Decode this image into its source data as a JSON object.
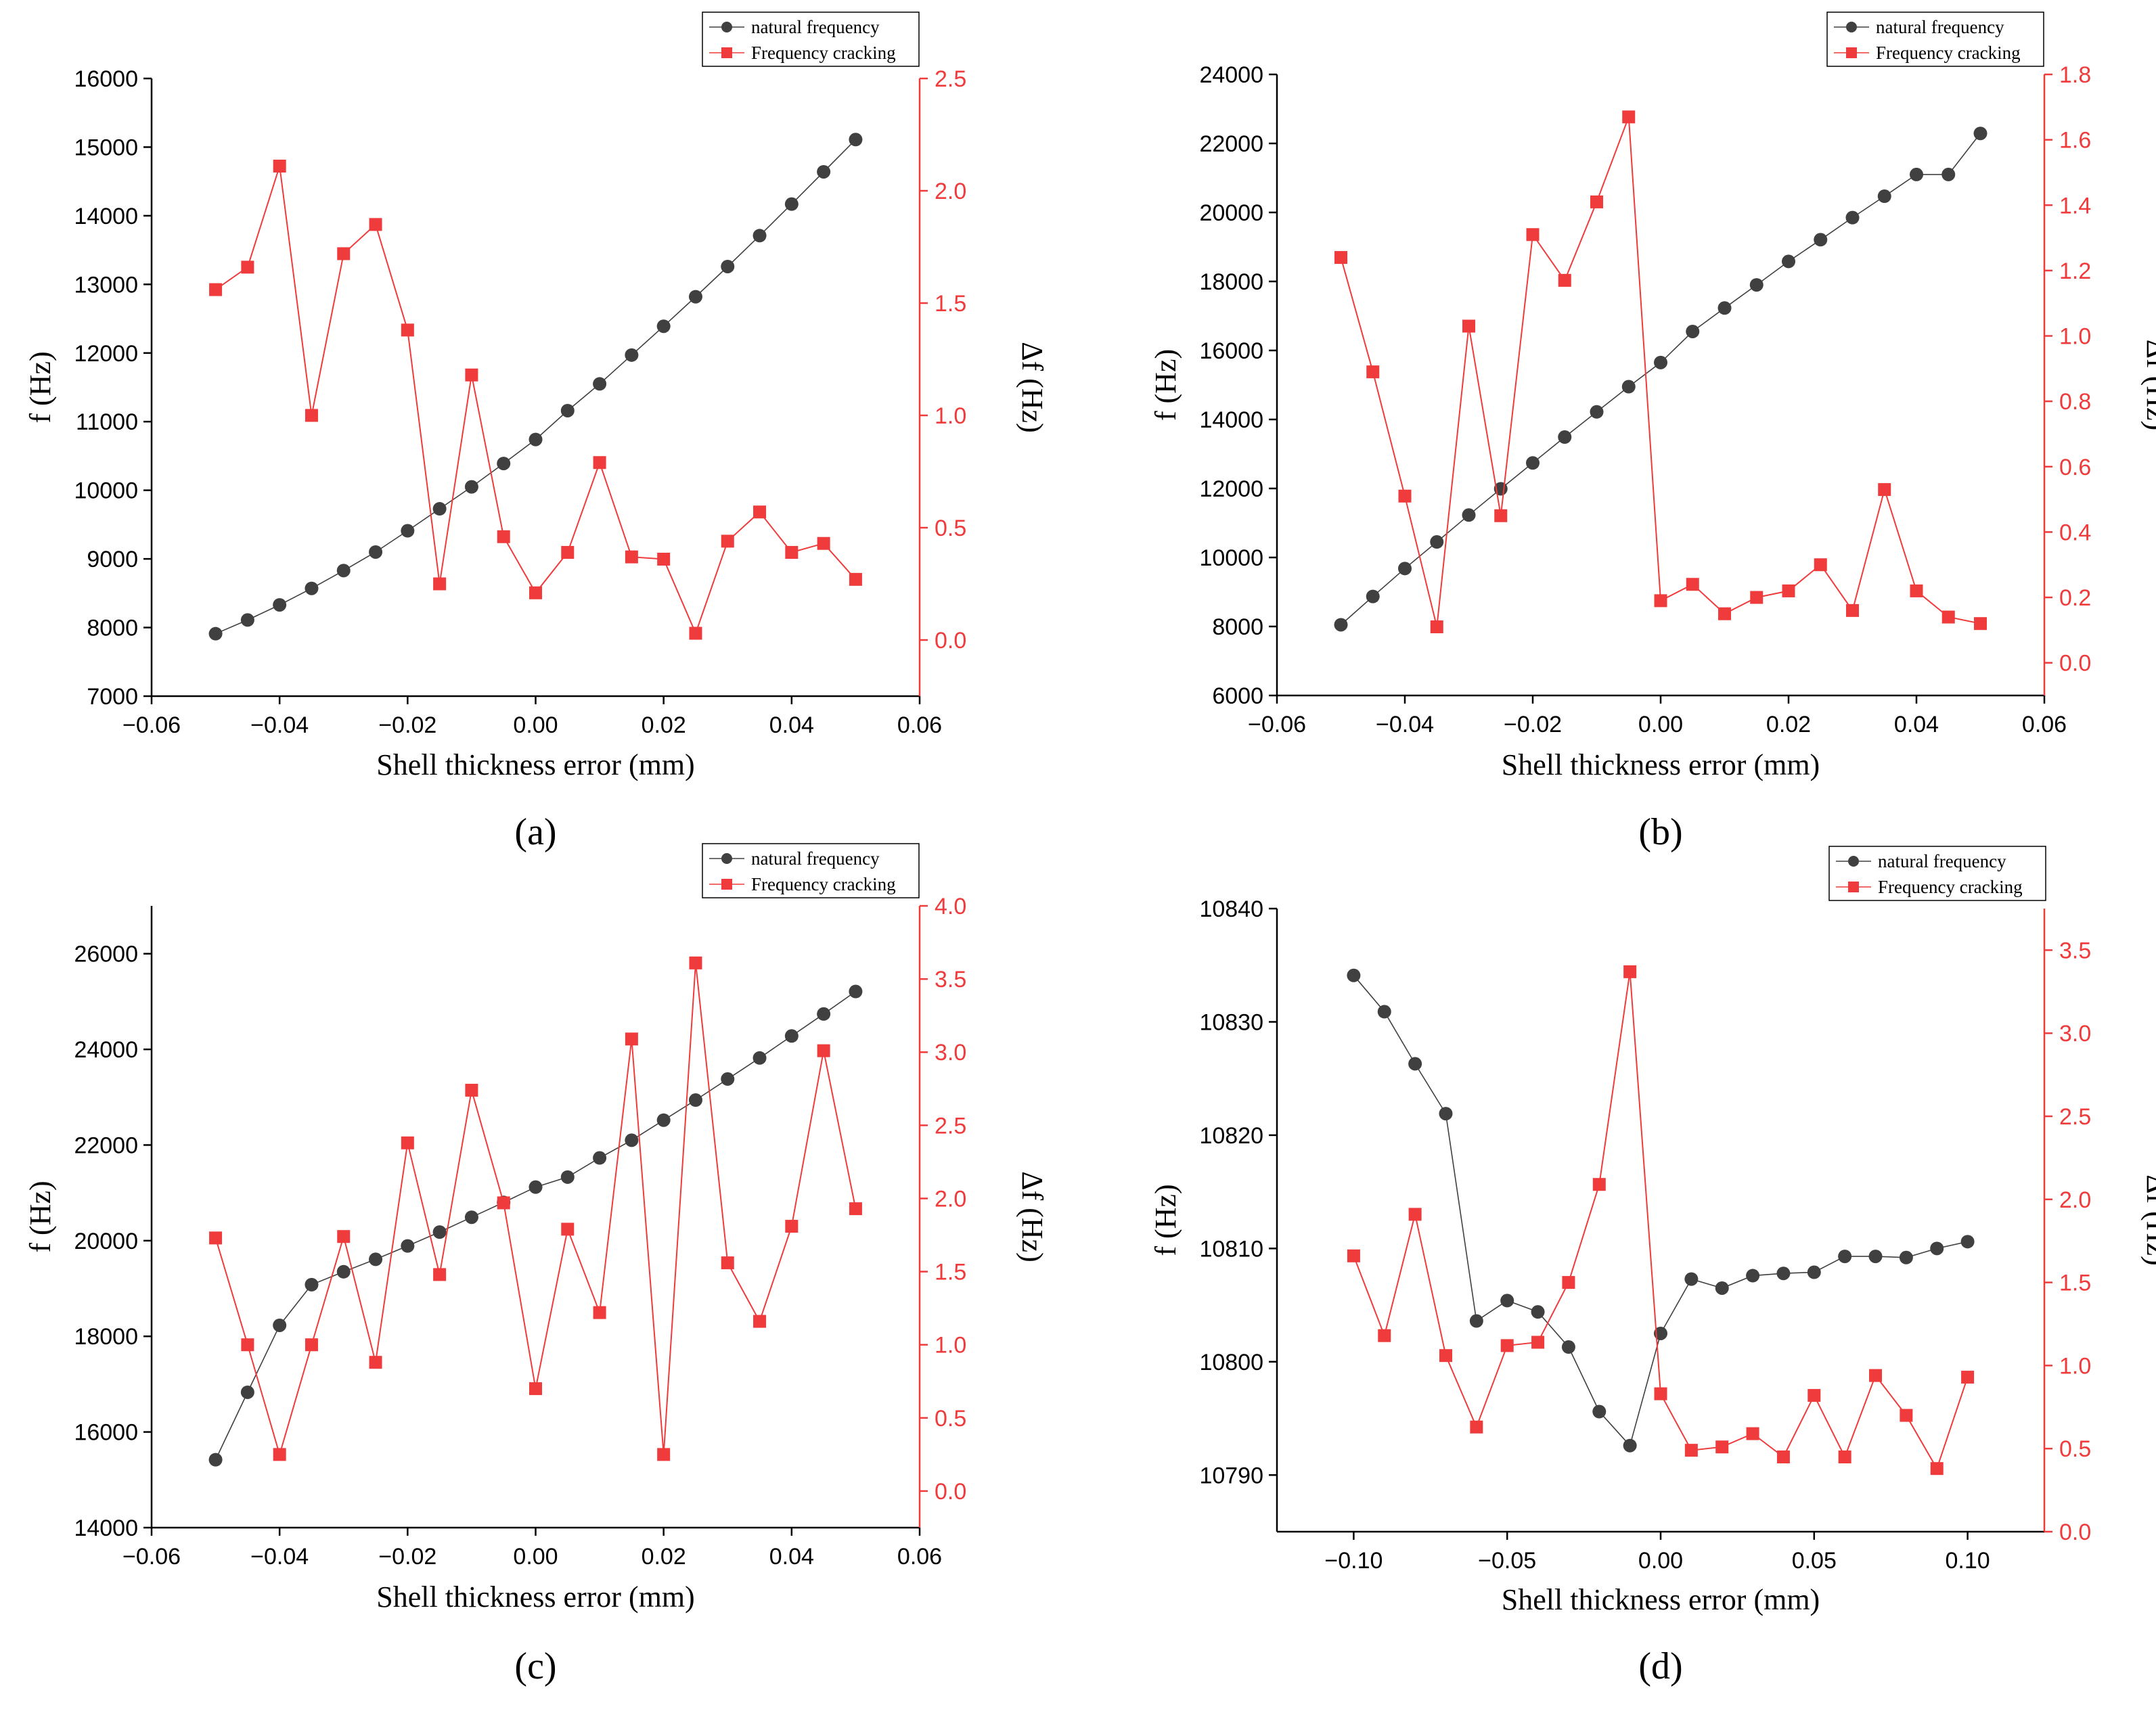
{
  "chart_data": [
    {
      "panel_label": "(a)",
      "type": "line",
      "xlabel": "Shell thickness error (mm)",
      "ylabel_left": "f (Hz)",
      "ylabel_right": "Δf (Hz)",
      "xlim": [
        -0.06,
        0.06
      ],
      "xticks": [
        -0.06,
        -0.04,
        -0.02,
        0.0,
        0.02,
        0.04,
        0.06
      ],
      "xtick_labels": [
        "−0.06",
        "−0.04",
        "−0.02",
        "0.00",
        "0.02",
        "0.04",
        "0.06"
      ],
      "ylim_left": [
        7000,
        16000
      ],
      "yticks_left": [
        7000,
        8000,
        9000,
        10000,
        11000,
        12000,
        13000,
        14000,
        15000,
        16000
      ],
      "ytick_labels_left": [
        "7000",
        "8000",
        "9000",
        "10000",
        "11000",
        "12000",
        "13000",
        "14000",
        "15000",
        "16000"
      ],
      "ylim_right": [
        -0.25,
        2.5
      ],
      "yticks_right": [
        0.0,
        0.5,
        1.0,
        1.5,
        2.0,
        2.5
      ],
      "ytick_labels_right": [
        "0.0",
        "0.5",
        "1.0",
        "1.5",
        "2.0",
        "2.5"
      ],
      "legend": [
        "natural frequency",
        "Frequency cracking"
      ],
      "legend_position": "top-right",
      "x": [
        -0.05,
        -0.045,
        -0.04,
        -0.035,
        -0.03,
        -0.025,
        -0.02,
        -0.015,
        -0.01,
        -0.005,
        0.0,
        0.005,
        0.01,
        0.015,
        0.02,
        0.025,
        0.03,
        0.035,
        0.04,
        0.045,
        0.05
      ],
      "series": [
        {
          "name": "natural frequency",
          "axis": "left",
          "color": "#404040",
          "marker": "circle",
          "values": [
            7910,
            8110,
            8330,
            8570,
            8830,
            9100,
            9410,
            9730,
            10050,
            10390,
            10740,
            11160,
            11550,
            11970,
            12390,
            12820,
            13260,
            13710,
            14170,
            14640,
            15110
          ]
        },
        {
          "name": "Frequency cracking",
          "axis": "right",
          "color": "#ef3b3b",
          "marker": "square",
          "values": [
            1.56,
            1.66,
            2.11,
            1.0,
            1.72,
            1.85,
            1.38,
            0.25,
            1.18,
            0.46,
            0.21,
            0.39,
            0.79,
            0.37,
            0.36,
            0.03,
            0.44,
            0.57,
            0.39,
            0.43,
            0.27
          ]
        }
      ]
    },
    {
      "panel_label": "(b)",
      "type": "line",
      "xlabel": "Shell thickness error (mm)",
      "ylabel_left": "f (Hz)",
      "ylabel_right": "Δf (Hz)",
      "xlim": [
        -0.06,
        0.06
      ],
      "xticks": [
        -0.06,
        -0.04,
        -0.02,
        0.0,
        0.02,
        0.04,
        0.06
      ],
      "xtick_labels": [
        "−0.06",
        "−0.04",
        "−0.02",
        "0.00",
        "0.02",
        "0.04",
        "0.06"
      ],
      "ylim_left": [
        6000,
        24000
      ],
      "yticks_left": [
        6000,
        8000,
        10000,
        12000,
        14000,
        16000,
        18000,
        20000,
        22000,
        24000
      ],
      "ytick_labels_left": [
        "6000",
        "8000",
        "10000",
        "12000",
        "14000",
        "16000",
        "18000",
        "20000",
        "22000",
        "24000"
      ],
      "ylim_right": [
        -0.1,
        1.8
      ],
      "yticks_right": [
        0.0,
        0.2,
        0.4,
        0.6,
        0.8,
        1.0,
        1.2,
        1.4,
        1.6,
        1.8
      ],
      "ytick_labels_right": [
        "0.0",
        "0.2",
        "0.4",
        "0.6",
        "0.8",
        "1.0",
        "1.2",
        "1.4",
        "1.6",
        "1.8"
      ],
      "legend": [
        "natural frequency",
        "Frequency cracking"
      ],
      "legend_position": "top-right",
      "x": [
        -0.05,
        -0.045,
        -0.04,
        -0.035,
        -0.03,
        -0.025,
        -0.02,
        -0.015,
        -0.01,
        -0.005,
        0.0,
        0.005,
        0.01,
        0.015,
        0.02,
        0.025,
        0.03,
        0.035,
        0.04,
        0.045,
        0.05
      ],
      "series": [
        {
          "name": "natural frequency",
          "axis": "left",
          "color": "#404040",
          "marker": "circle",
          "values": [
            8050,
            8870,
            9680,
            10450,
            11230,
            11990,
            12740,
            13490,
            14220,
            14950,
            15650,
            16550,
            17230,
            17900,
            18580,
            19210,
            19850,
            20470,
            21100,
            21100,
            22290
          ]
        },
        {
          "name": "Frequency cracking",
          "axis": "right",
          "color": "#ef3b3b",
          "marker": "square",
          "values": [
            1.24,
            0.89,
            0.51,
            0.11,
            1.03,
            0.45,
            1.31,
            1.17,
            1.41,
            1.67,
            0.19,
            0.24,
            0.15,
            0.2,
            0.22,
            0.3,
            0.16,
            0.53,
            0.22,
            0.14,
            0.12
          ]
        }
      ]
    },
    {
      "panel_label": "(c)",
      "type": "line",
      "xlabel": "Shell thickness error (mm)",
      "ylabel_left": "f (Hz)",
      "ylabel_right": "Δf (Hz)",
      "xlim": [
        -0.06,
        0.06
      ],
      "xticks": [
        -0.06,
        -0.04,
        -0.02,
        0.0,
        0.02,
        0.04,
        0.06
      ],
      "xtick_labels": [
        "−0.06",
        "−0.04",
        "−0.02",
        "0.00",
        "0.02",
        "0.04",
        "0.06"
      ],
      "ylim_left": [
        14000,
        27000
      ],
      "yticks_left": [
        14000,
        16000,
        18000,
        20000,
        22000,
        24000,
        26000
      ],
      "ytick_labels_left": [
        "14000",
        "16000",
        "18000",
        "20000",
        "22000",
        "24000",
        "26000"
      ],
      "ylim_right": [
        -0.25,
        4.0
      ],
      "yticks_right": [
        0.0,
        0.5,
        1.0,
        1.5,
        2.0,
        2.5,
        3.0,
        3.5,
        4.0
      ],
      "ytick_labels_right": [
        "0.0",
        "0.5",
        "1.0",
        "1.5",
        "2.0",
        "2.5",
        "3.0",
        "3.5",
        "4.0"
      ],
      "legend": [
        "natural frequency",
        "Frequency cracking"
      ],
      "legend_position": "top-right",
      "x": [
        -0.05,
        -0.045,
        -0.04,
        -0.035,
        -0.03,
        -0.025,
        -0.02,
        -0.015,
        -0.01,
        -0.005,
        0.0,
        0.005,
        0.01,
        0.015,
        0.02,
        0.025,
        0.03,
        0.035,
        0.04,
        0.045,
        0.05
      ],
      "series": [
        {
          "name": "natural frequency",
          "axis": "left",
          "color": "#404040",
          "marker": "circle",
          "values": [
            15420,
            16830,
            18230,
            19080,
            19350,
            19610,
            19890,
            20180,
            20490,
            20800,
            21120,
            21330,
            21730,
            22100,
            22520,
            22940,
            23380,
            23820,
            24280,
            24740,
            25210
          ]
        },
        {
          "name": "Frequency cracking",
          "axis": "right",
          "color": "#ef3b3b",
          "marker": "square",
          "values": [
            1.73,
            1.0,
            0.25,
            1.0,
            1.74,
            0.88,
            2.38,
            1.48,
            2.74,
            1.97,
            0.7,
            1.79,
            1.22,
            3.09,
            0.25,
            3.61,
            1.56,
            1.16,
            1.81,
            3.01,
            1.93
          ]
        }
      ]
    },
    {
      "panel_label": "(d)",
      "type": "line",
      "xlabel": "Shell thickness error (mm)",
      "ylabel_left": "f (Hz)",
      "ylabel_right": "Δf (Hz)",
      "xlim": [
        -0.125,
        0.125
      ],
      "xticks": [
        -0.1,
        -0.05,
        0.0,
        0.05,
        0.1
      ],
      "xtick_labels": [
        "−0.10",
        "−0.05",
        "0.00",
        "0.05",
        "0.10"
      ],
      "ylim_left": [
        10785,
        10840
      ],
      "yticks_left": [
        10790,
        10800,
        10810,
        10820,
        10830,
        10840
      ],
      "ytick_labels_left": [
        "10790",
        "10800",
        "10810",
        "10820",
        "10830",
        "10840"
      ],
      "ylim_right": [
        0.0,
        3.75
      ],
      "yticks_right": [
        0.0,
        0.5,
        1.0,
        1.5,
        2.0,
        2.5,
        3.0,
        3.5
      ],
      "ytick_labels_right": [
        "0.0",
        "0.5",
        "1.0",
        "1.5",
        "2.0",
        "2.5",
        "3.0",
        "3.5"
      ],
      "legend": [
        "natural frequency",
        "Frequency cracking"
      ],
      "legend_position": "top-right",
      "x": [
        -0.1,
        -0.09,
        -0.08,
        -0.07,
        -0.06,
        -0.05,
        -0.04,
        -0.03,
        -0.02,
        -0.01,
        0.0,
        0.01,
        0.02,
        0.03,
        0.04,
        0.05,
        0.06,
        0.07,
        0.08,
        0.09,
        0.1
      ],
      "series": [
        {
          "name": "natural frequency",
          "axis": "left",
          "color": "#404040",
          "marker": "circle",
          "values": [
            10834.1,
            10830.9,
            10826.3,
            10821.9,
            10803.6,
            10805.4,
            10804.4,
            10801.3,
            10795.6,
            10792.6,
            10802.5,
            10807.3,
            10806.5,
            10807.6,
            10807.8,
            10807.9,
            10809.3,
            10809.3,
            10809.2,
            10810.0,
            10810.6
          ]
        },
        {
          "name": "Frequency cracking",
          "axis": "right",
          "color": "#ef3b3b",
          "marker": "square",
          "values": [
            1.66,
            1.18,
            1.91,
            1.06,
            0.63,
            1.12,
            1.14,
            1.5,
            2.09,
            3.37,
            0.83,
            0.49,
            0.51,
            0.59,
            0.45,
            0.82,
            0.45,
            0.94,
            0.7,
            0.38,
            0.93
          ]
        }
      ]
    }
  ]
}
